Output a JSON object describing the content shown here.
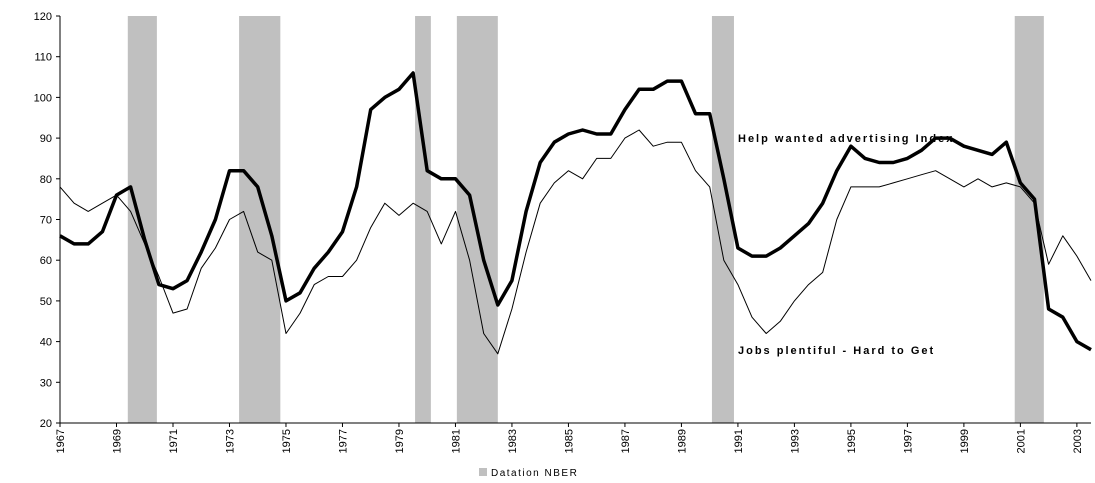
{
  "chart_data": {
    "type": "line",
    "x": [
      1967,
      1967.5,
      1968,
      1968.5,
      1969,
      1969.5,
      1970,
      1970.5,
      1971,
      1971.5,
      1972,
      1972.5,
      1973,
      1973.5,
      1974,
      1974.5,
      1975,
      1975.5,
      1976,
      1976.5,
      1977,
      1977.5,
      1978,
      1978.5,
      1979,
      1979.5,
      1980,
      1980.5,
      1981,
      1981.5,
      1982,
      1982.5,
      1983,
      1983.5,
      1984,
      1984.5,
      1985,
      1985.5,
      1986,
      1986.5,
      1987,
      1987.5,
      1988,
      1988.5,
      1989,
      1989.5,
      1990,
      1990.5,
      1991,
      1991.5,
      1992,
      1992.5,
      1993,
      1993.5,
      1994,
      1994.5,
      1995,
      1995.5,
      1996,
      1996.5,
      1997,
      1997.5,
      1998,
      1998.5,
      1999,
      1999.5,
      2000,
      2000.5,
      2001,
      2001.5,
      2002,
      2002.5,
      2003,
      2003.5
    ],
    "series": [
      {
        "name": "Help wanted advertising Index",
        "color": "#000000",
        "width": 3.5,
        "values": [
          66,
          64,
          64,
          67,
          76,
          78,
          65,
          54,
          53,
          55,
          62,
          70,
          82,
          82,
          78,
          66,
          50,
          52,
          58,
          62,
          67,
          78,
          97,
          100,
          102,
          106,
          82,
          80,
          80,
          76,
          60,
          49,
          55,
          72,
          84,
          89,
          91,
          92,
          91,
          91,
          97,
          102,
          102,
          104,
          104,
          96,
          96,
          80,
          63,
          61,
          61,
          63,
          66,
          69,
          74,
          82,
          88,
          85,
          84,
          84,
          85,
          87,
          90,
          90,
          88,
          87,
          86,
          89,
          79,
          75,
          48,
          46,
          40,
          38
        ]
      },
      {
        "name": "Jobs plentiful - Hard to Get",
        "color": "#000000",
        "width": 1,
        "values": [
          78,
          74,
          72,
          74,
          76,
          72,
          64,
          56,
          47,
          48,
          58,
          63,
          70,
          72,
          62,
          60,
          42,
          47,
          54,
          56,
          56,
          60,
          68,
          74,
          71,
          74,
          72,
          64,
          72,
          60,
          42,
          37,
          48,
          62,
          74,
          79,
          82,
          80,
          85,
          85,
          90,
          92,
          88,
          89,
          89,
          82,
          78,
          60,
          54,
          46,
          42,
          45,
          50,
          54,
          57,
          70,
          78,
          78,
          78,
          79,
          80,
          81,
          82,
          80,
          78,
          80,
          78,
          79,
          78,
          74,
          59,
          66,
          61,
          55
        ]
      }
    ],
    "recessions": {
      "name": "Datation NBER",
      "color": "#c0c0c0",
      "periods": [
        [
          1969.4,
          1970.43
        ],
        [
          1973.34,
          1974.8
        ],
        [
          1979.57,
          1980.13
        ],
        [
          1981.05,
          1982.5
        ],
        [
          1990.08,
          1990.86
        ],
        [
          2000.8,
          2001.83
        ]
      ]
    },
    "xlim": [
      1967,
      2003.5
    ],
    "xticks": [
      1967,
      1969,
      1971,
      1973,
      1975,
      1977,
      1979,
      1981,
      1983,
      1985,
      1987,
      1989,
      1991,
      1993,
      1995,
      1997,
      1999,
      2001,
      2003
    ],
    "ylim": [
      20,
      120
    ],
    "yticks": [
      20,
      30,
      40,
      50,
      60,
      70,
      80,
      90,
      100,
      110,
      120
    ],
    "grid": false
  }
}
